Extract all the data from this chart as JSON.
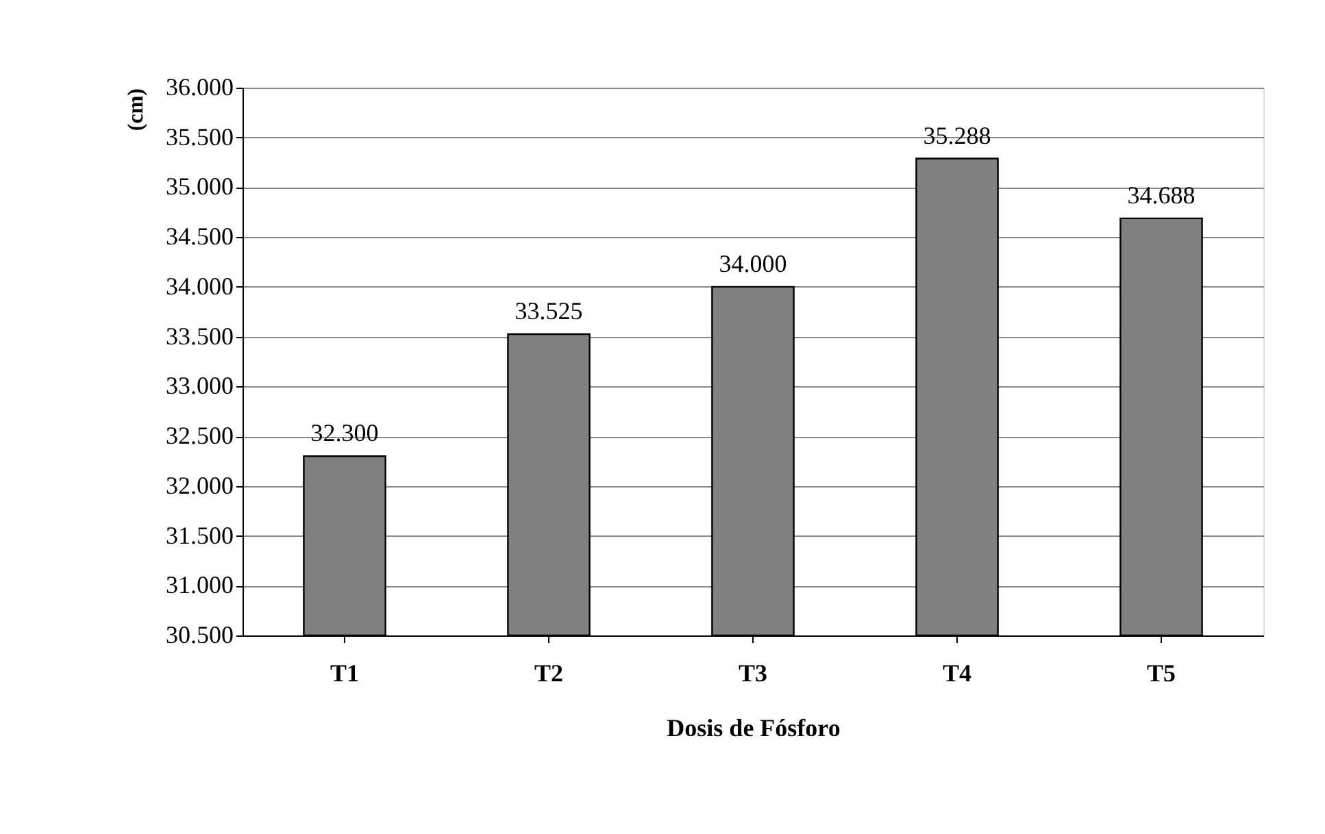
{
  "chart_data": {
    "type": "bar",
    "xlabel": "Dosis de Fósforo",
    "ylabel": "(cm)",
    "categories": [
      "T1",
      "T2",
      "T3",
      "T4",
      "T5"
    ],
    "values": [
      32.3,
      33.525,
      34.0,
      35.288,
      34.688
    ],
    "value_labels": [
      "32.300",
      "33.525",
      "34.000",
      "35.288",
      "34.688"
    ],
    "color": "#808080",
    "ylim": [
      30.5,
      36
    ],
    "yticks": [
      {
        "value": 30.5,
        "label": "30.500"
      },
      {
        "value": 31,
        "label": "31.000"
      },
      {
        "value": 31.5,
        "label": "31.500"
      },
      {
        "value": 32,
        "label": "32.000"
      },
      {
        "value": 32.5,
        "label": "32.500"
      },
      {
        "value": 33,
        "label": "33.000"
      },
      {
        "value": 33.5,
        "label": "33.500"
      },
      {
        "value": 34,
        "label": "34.000"
      },
      {
        "value": 34.5,
        "label": "34.500"
      },
      {
        "value": 35,
        "label": "35.000"
      },
      {
        "value": 35.5,
        "label": "35.500"
      },
      {
        "value": 36,
        "label": "36.000"
      }
    ],
    "grid": "y"
  }
}
